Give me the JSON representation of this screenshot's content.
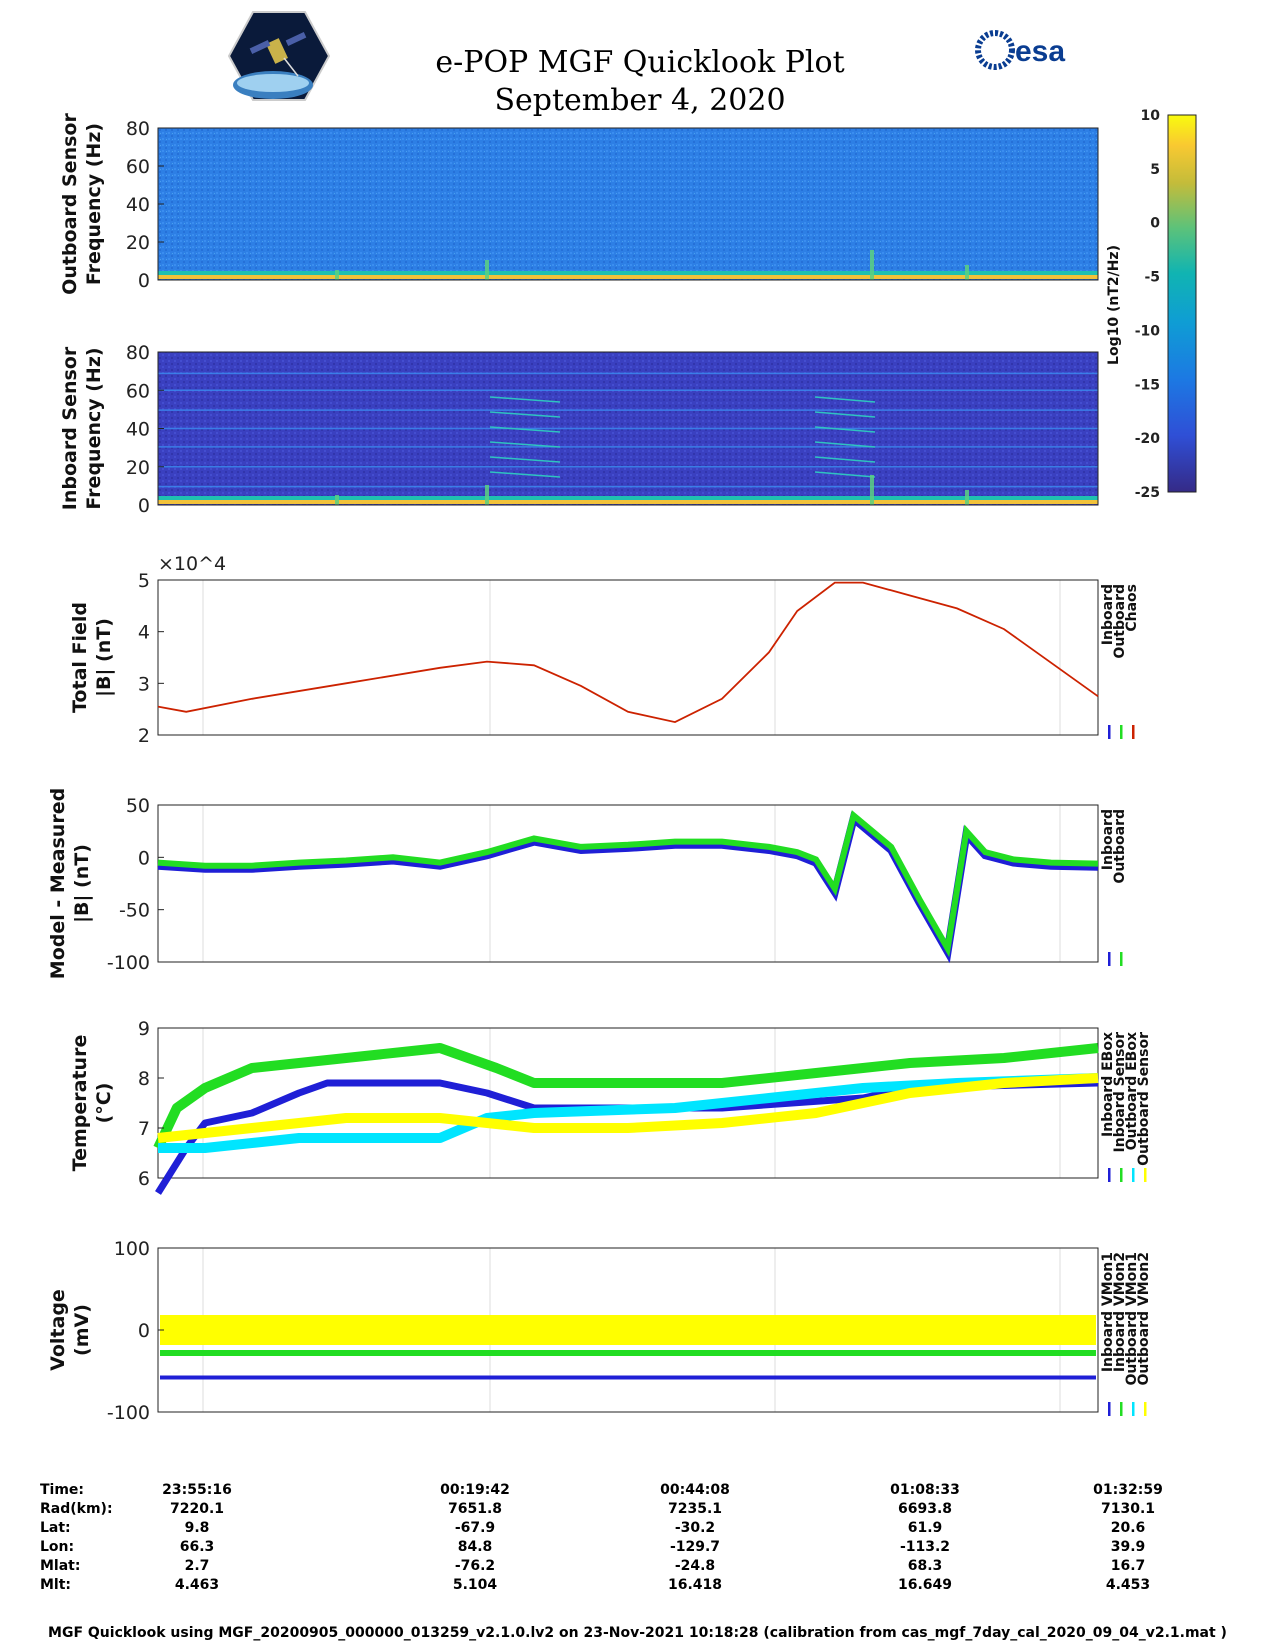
{
  "header": {
    "title": "e-POP MGF Quicklook Plot",
    "date": "September 4, 2020",
    "logo_left_icon": "cassiope-satellite-logo",
    "logo_right_text": "esa"
  },
  "colorbar": {
    "label": "Log10 (nT2/Hz)",
    "ticks": [
      "10",
      "5",
      "0",
      "-5",
      "-10",
      "-15",
      "-20",
      "-25"
    ],
    "range": [
      -25,
      10
    ],
    "colormap": "parula"
  },
  "chart_data": [
    {
      "type": "heatmap",
      "ylabel": [
        "Outboard Sensor",
        "Frequency (Hz)"
      ],
      "ylim": [
        0,
        80
      ],
      "yticks": [
        "80",
        "60",
        "40",
        "20",
        "0"
      ],
      "description_level": "mostly background ~ -12 log10 nT2/Hz, bright band near 0-2 Hz"
    },
    {
      "type": "heatmap",
      "ylabel": [
        "Inboard Sensor",
        "Frequency (Hz)"
      ],
      "ylim": [
        0,
        80
      ],
      "yticks": [
        "80",
        "60",
        "40",
        "20",
        "0"
      ],
      "description_level": "background ~ -22 log10 nT2/Hz with horizontal interference lines"
    },
    {
      "type": "line",
      "ylabel": [
        "Total Field",
        "|B| (nT)"
      ],
      "exponent_label": "×10^4",
      "ylim": [
        2,
        5
      ],
      "yticks": [
        "5",
        "4",
        "3",
        "2"
      ],
      "legend": [
        "Inboard",
        "Outboard",
        "Chaos"
      ],
      "legend_colors": [
        "#1f1fd6",
        "#22dd22",
        "#cc2200"
      ],
      "x": [
        0,
        0.03,
        0.1,
        0.2,
        0.3,
        0.35,
        0.4,
        0.45,
        0.5,
        0.55,
        0.6,
        0.65,
        0.68,
        0.72,
        0.75,
        0.8,
        0.85,
        0.9,
        0.95,
        1.0
      ],
      "y": [
        2.55,
        2.45,
        2.7,
        3.0,
        3.3,
        3.42,
        3.35,
        2.95,
        2.45,
        2.25,
        2.7,
        3.6,
        4.4,
        4.95,
        4.95,
        4.7,
        4.45,
        4.05,
        3.4,
        2.75
      ]
    },
    {
      "type": "line",
      "ylabel": [
        "Model - Measured",
        "|B| (nT)"
      ],
      "ylim": [
        -100,
        50
      ],
      "yticks": [
        "50",
        "0",
        "-50",
        "-100"
      ],
      "legend": [
        "Inboard",
        "Outboard"
      ],
      "legend_colors": [
        "#1f1fd6",
        "#22dd22"
      ],
      "x": [
        0,
        0.05,
        0.1,
        0.15,
        0.2,
        0.25,
        0.3,
        0.35,
        0.4,
        0.45,
        0.5,
        0.55,
        0.6,
        0.65,
        0.68,
        0.7,
        0.72,
        0.74,
        0.76,
        0.78,
        0.81,
        0.84,
        0.86,
        0.88,
        0.91,
        0.95,
        1.0
      ],
      "y": [
        -5,
        -8,
        -8,
        -5,
        -3,
        0,
        -5,
        5,
        18,
        10,
        12,
        15,
        15,
        10,
        5,
        -2,
        -30,
        40,
        25,
        10,
        -40,
        -87,
        25,
        5,
        -2,
        -5,
        -6
      ]
    },
    {
      "type": "line",
      "ylabel": [
        "Temperature",
        "(°C)"
      ],
      "ylim": [
        6,
        9
      ],
      "yticks": [
        "9",
        "8",
        "7",
        "6"
      ],
      "legend": [
        "Inboard EBox",
        "Inboard Sensor",
        "Outboard EBox",
        "Outboard Sensor"
      ],
      "legend_colors": [
        "#1f1fd6",
        "#22dd22",
        "#00e5ff",
        "#ffff00"
      ],
      "series": [
        {
          "name": "Inboard EBox",
          "x": [
            0,
            0.03,
            0.05,
            0.1,
            0.15,
            0.18,
            0.3,
            0.35,
            0.4,
            0.6,
            0.75,
            0.8,
            1.0
          ],
          "y": [
            5.7,
            6.6,
            7.1,
            7.3,
            7.7,
            7.9,
            7.9,
            7.7,
            7.4,
            7.4,
            7.6,
            7.8,
            7.9
          ]
        },
        {
          "name": "Inboard Sensor",
          "x": [
            0,
            0.02,
            0.05,
            0.1,
            0.2,
            0.3,
            0.33,
            0.36,
            0.4,
            0.6,
            0.7,
            0.75,
            0.8,
            0.9,
            1.0
          ],
          "y": [
            6.6,
            7.4,
            7.8,
            8.2,
            8.4,
            8.6,
            8.4,
            8.2,
            7.9,
            7.9,
            8.1,
            8.2,
            8.3,
            8.4,
            8.6
          ]
        },
        {
          "name": "Outboard EBox",
          "x": [
            0,
            0.05,
            0.1,
            0.15,
            0.3,
            0.35,
            0.4,
            0.55,
            0.65,
            0.75,
            0.85,
            1.0
          ],
          "y": [
            6.6,
            6.6,
            6.7,
            6.8,
            6.8,
            7.2,
            7.3,
            7.4,
            7.6,
            7.8,
            7.9,
            8.0
          ]
        },
        {
          "name": "Outboard Sensor",
          "x": [
            0,
            0.05,
            0.1,
            0.2,
            0.3,
            0.4,
            0.5,
            0.6,
            0.7,
            0.75,
            0.8,
            0.9,
            1.0
          ],
          "y": [
            6.8,
            6.9,
            7.0,
            7.2,
            7.2,
            7.0,
            7.0,
            7.1,
            7.3,
            7.5,
            7.7,
            7.9,
            8.0
          ]
        }
      ]
    },
    {
      "type": "line",
      "ylabel": [
        "Voltage",
        "(mV)"
      ],
      "ylim": [
        -100,
        100
      ],
      "yticks": [
        "100",
        "0",
        "-100"
      ],
      "legend": [
        "Inboard VMon1",
        "Inboard VMon2",
        "Outboard VMon1",
        "Outboard VMon2"
      ],
      "legend_colors": [
        "#1f1fd6",
        "#22dd22",
        "#00e5ff",
        "#ffff00"
      ],
      "series": [
        {
          "name": "Inboard VMon1",
          "y_const": -58
        },
        {
          "name": "Inboard VMon2",
          "y_const": -28
        },
        {
          "name": "Outboard VMon1",
          "y_const": 0
        },
        {
          "name": "Outboard VMon2",
          "y_const": 0
        }
      ]
    }
  ],
  "info_table": {
    "labels": [
      "Time:",
      "Rad(km):",
      "Lat:",
      "Lon:",
      "Mlat:",
      "Mlt:"
    ],
    "columns": [
      [
        "23:55:16",
        "7220.1",
        "9.8",
        "66.3",
        "2.7",
        "4.463"
      ],
      [
        "00:19:42",
        "7651.8",
        "-67.9",
        "84.8",
        "-76.2",
        "5.104"
      ],
      [
        "00:44:08",
        "7235.1",
        "-30.2",
        "-129.7",
        "-24.8",
        "16.418"
      ],
      [
        "01:08:33",
        "6693.8",
        "61.9",
        "-113.2",
        "68.3",
        "16.649"
      ],
      [
        "01:32:59",
        "7130.1",
        "20.6",
        "39.9",
        "16.7",
        "4.453"
      ]
    ]
  },
  "footer": {
    "text": "MGF Quicklook using MGF_20200905_000000_013259_v2.1.0.lv2 on 23-Nov-2021 10:18:28 (calibration from cas_mgf_7day_cal_2020_09_04_v2.1.mat )"
  }
}
